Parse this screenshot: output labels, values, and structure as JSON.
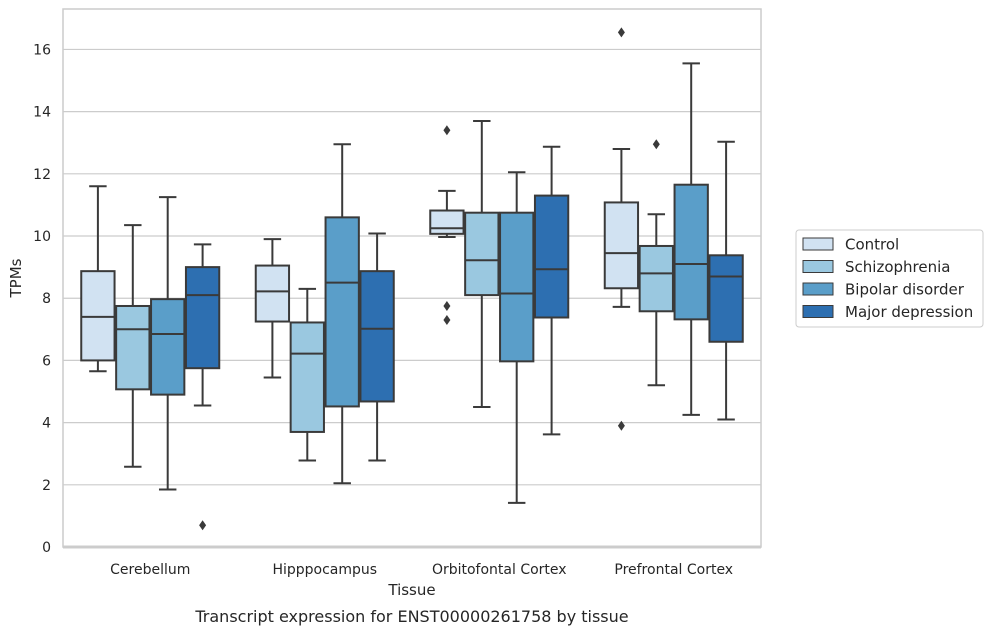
{
  "chart_data": {
    "type": "box",
    "caption": "Transcript expression for ENST00000261758 by tissue",
    "xlabel": "Tissue",
    "ylabel": "TPMs",
    "ylim": [
      0,
      17.3
    ],
    "yticks": [
      0,
      2,
      4,
      6,
      8,
      10,
      12,
      14,
      16
    ],
    "grid": "horizontal",
    "legend_position": "right",
    "categories": [
      "Cerebellum",
      "Hipppocampus",
      "Orbitofontal Cortex",
      "Prefrontal Cortex"
    ],
    "series": [
      {
        "name": "Control",
        "color": "#d1e2f2",
        "boxes": [
          {
            "whisker_low": 5.65,
            "q1": 6.0,
            "median": 7.4,
            "q3": 8.87,
            "whisker_high": 11.6,
            "outliers": []
          },
          {
            "whisker_low": 5.45,
            "q1": 7.25,
            "median": 8.22,
            "q3": 9.05,
            "whisker_high": 9.9,
            "outliers": []
          },
          {
            "whisker_low": 9.97,
            "q1": 10.07,
            "median": 10.25,
            "q3": 10.82,
            "whisker_high": 11.45,
            "outliers": [
              13.4,
              7.75,
              7.3
            ]
          },
          {
            "whisker_low": 7.72,
            "q1": 8.32,
            "median": 9.45,
            "q3": 11.08,
            "whisker_high": 12.8,
            "outliers": [
              16.55,
              3.9
            ]
          }
        ]
      },
      {
        "name": "Schizophrenia",
        "color": "#9ac8e0",
        "boxes": [
          {
            "whisker_low": 2.58,
            "q1": 5.07,
            "median": 7.0,
            "q3": 7.75,
            "whisker_high": 10.35,
            "outliers": []
          },
          {
            "whisker_low": 2.78,
            "q1": 3.7,
            "median": 6.22,
            "q3": 7.22,
            "whisker_high": 8.3,
            "outliers": []
          },
          {
            "whisker_low": 4.5,
            "q1": 8.1,
            "median": 9.22,
            "q3": 10.75,
            "whisker_high": 13.7,
            "outliers": []
          },
          {
            "whisker_low": 5.2,
            "q1": 7.58,
            "median": 8.8,
            "q3": 9.68,
            "whisker_high": 10.7,
            "outliers": [
              12.95
            ]
          }
        ]
      },
      {
        "name": "Bipolar disorder",
        "color": "#5a9ec9",
        "boxes": [
          {
            "whisker_low": 1.85,
            "q1": 4.9,
            "median": 6.85,
            "q3": 7.97,
            "whisker_high": 11.25,
            "outliers": []
          },
          {
            "whisker_low": 2.05,
            "q1": 4.52,
            "median": 8.5,
            "q3": 10.6,
            "whisker_high": 12.95,
            "outliers": []
          },
          {
            "whisker_low": 1.42,
            "q1": 5.97,
            "median": 8.15,
            "q3": 10.75,
            "whisker_high": 12.05,
            "outliers": []
          },
          {
            "whisker_low": 4.25,
            "q1": 7.32,
            "median": 9.1,
            "q3": 11.65,
            "whisker_high": 15.55,
            "outliers": []
          }
        ]
      },
      {
        "name": "Major depression",
        "color": "#2d6fb1",
        "boxes": [
          {
            "whisker_low": 4.55,
            "q1": 5.75,
            "median": 8.1,
            "q3": 9.0,
            "whisker_high": 9.73,
            "outliers": [
              0.7
            ]
          },
          {
            "whisker_low": 2.78,
            "q1": 4.68,
            "median": 7.02,
            "q3": 8.87,
            "whisker_high": 10.08,
            "outliers": []
          },
          {
            "whisker_low": 3.62,
            "q1": 7.38,
            "median": 8.93,
            "q3": 11.3,
            "whisker_high": 12.87,
            "outliers": []
          },
          {
            "whisker_low": 4.1,
            "q1": 6.6,
            "median": 8.7,
            "q3": 9.38,
            "whisker_high": 13.03,
            "outliers": []
          }
        ]
      }
    ]
  }
}
